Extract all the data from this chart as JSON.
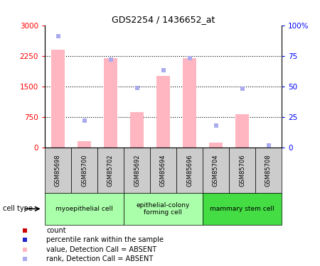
{
  "title": "GDS2254 / 1436652_at",
  "samples": [
    "GSM85698",
    "GSM85700",
    "GSM85702",
    "GSM85692",
    "GSM85694",
    "GSM85696",
    "GSM85704",
    "GSM85706",
    "GSM85708"
  ],
  "absent_values": [
    2400,
    150,
    2200,
    870,
    1750,
    2200,
    130,
    820,
    10
  ],
  "absent_ranks_pct": [
    91,
    22,
    72,
    49,
    63,
    73,
    18,
    48,
    2
  ],
  "ylim_left": [
    0,
    3000
  ],
  "ylim_right": [
    0,
    100
  ],
  "yticks_left": [
    0,
    750,
    1500,
    2250,
    3000
  ],
  "yticks_right": [
    0,
    25,
    50,
    75,
    100
  ],
  "ytick_labels_left": [
    "0",
    "750",
    "1500",
    "2250",
    "3000"
  ],
  "ytick_labels_right": [
    "0",
    "25",
    "50",
    "75",
    "100%"
  ],
  "cell_groups": [
    {
      "label": "myoepithelial cell",
      "start": 0,
      "end": 3,
      "color": "#aaffaa"
    },
    {
      "label": "epithelial-colony\nforming cell",
      "start": 3,
      "end": 6,
      "color": "#aaffaa"
    },
    {
      "label": "mammary stem cell",
      "start": 6,
      "end": 9,
      "color": "#44dd44"
    }
  ],
  "absent_bar_color": "#FFB6C1",
  "absent_rank_color": "#aaaaee",
  "present_bar_color": "#CC0000",
  "present_rank_color": "#2222CC",
  "grid_line_vals": [
    750,
    1500,
    2250
  ],
  "sample_box_color": "#CCCCCC",
  "cell_type_label": "cell type",
  "legend_items": [
    {
      "color": "#CC0000",
      "label": "count"
    },
    {
      "color": "#2222CC",
      "label": "percentile rank within the sample"
    },
    {
      "color": "#FFB6C1",
      "label": "value, Detection Call = ABSENT"
    },
    {
      "color": "#aaaaee",
      "label": "rank, Detection Call = ABSENT"
    }
  ]
}
